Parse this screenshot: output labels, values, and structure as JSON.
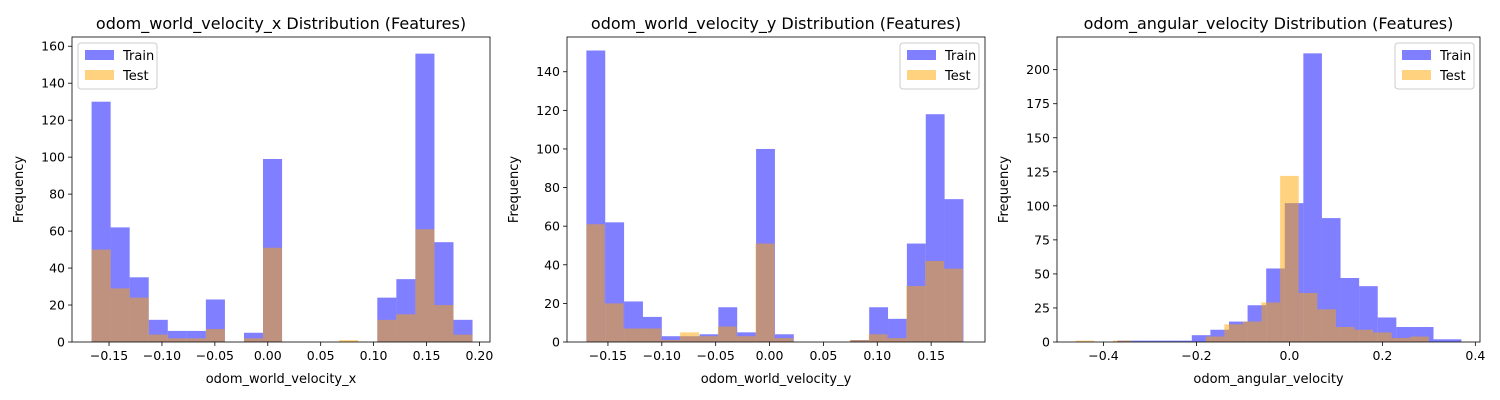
{
  "chart_data": [
    {
      "type": "bar",
      "title": "odom_world_velocity_x Distribution (Features)",
      "xlabel": "odom_world_velocity_x",
      "ylabel": "Frequency",
      "xlim": [
        -0.185,
        0.21
      ],
      "ylim": [
        0,
        165
      ],
      "xticks": [
        -0.15,
        -0.1,
        -0.05,
        0.0,
        0.05,
        0.1,
        0.15,
        0.2
      ],
      "xtick_labels": [
        "−0.15",
        "−0.10",
        "−0.05",
        "0.00",
        "0.05",
        "0.10",
        "0.15",
        "0.20"
      ],
      "yticks": [
        0,
        20,
        40,
        60,
        80,
        100,
        120,
        140,
        160
      ],
      "ytick_labels": [
        "0",
        "20",
        "40",
        "60",
        "80",
        "100",
        "120",
        "140",
        "160"
      ],
      "grid": false,
      "legend": "upper-left",
      "series": [
        {
          "name": "Train",
          "color": "#0000ff",
          "alpha": 0.5,
          "bins": [
            -0.1665,
            -0.1485,
            -0.1305,
            -0.1125,
            -0.0945,
            -0.0765,
            -0.0585,
            -0.0405,
            -0.0225,
            -0.0045,
            0.0135,
            0.0315,
            0.0495,
            0.0675,
            0.0855,
            0.1035,
            0.1215,
            0.1395,
            0.1575,
            0.1755,
            0.1935
          ],
          "counts": [
            130,
            62,
            35,
            12,
            6,
            6,
            23,
            0,
            5,
            99,
            0,
            0,
            0,
            0,
            0,
            24,
            34,
            156,
            54,
            12
          ]
        },
        {
          "name": "Test",
          "color": "#ffa500",
          "alpha": 0.5,
          "bins": [
            -0.1665,
            -0.1485,
            -0.1305,
            -0.1125,
            -0.0945,
            -0.0765,
            -0.0585,
            -0.0405,
            -0.0225,
            -0.0045,
            0.0135,
            0.0315,
            0.0495,
            0.0675,
            0.0855,
            0.1035,
            0.1215,
            0.1395,
            0.1575,
            0.1755,
            0.1935
          ],
          "counts": [
            50,
            29,
            24,
            4,
            2,
            2,
            7,
            0,
            2,
            51,
            0,
            0,
            0,
            1,
            0,
            12,
            15,
            61,
            20,
            4
          ]
        }
      ]
    },
    {
      "type": "bar",
      "title": "odom_world_velocity_y Distribution (Features)",
      "xlabel": "odom_world_velocity_y",
      "ylabel": "Frequency",
      "xlim": [
        -0.188,
        0.2
      ],
      "ylim": [
        0,
        158
      ],
      "xticks": [
        -0.15,
        -0.1,
        -0.05,
        0.0,
        0.05,
        0.1,
        0.15
      ],
      "xtick_labels": [
        "−0.15",
        "−0.10",
        "−0.05",
        "0.00",
        "0.05",
        "0.10",
        "0.15"
      ],
      "yticks": [
        0,
        20,
        40,
        60,
        80,
        100,
        120,
        140
      ],
      "ytick_labels": [
        "0",
        "20",
        "40",
        "60",
        "80",
        "100",
        "120",
        "140"
      ],
      "grid": false,
      "legend": "upper-right",
      "series": [
        {
          "name": "Train",
          "color": "#0000ff",
          "alpha": 0.5,
          "bins": [
            -0.17,
            -0.1525,
            -0.135,
            -0.1175,
            -0.1,
            -0.0825,
            -0.065,
            -0.0475,
            -0.03,
            -0.0125,
            0.005,
            0.0225,
            0.04,
            0.0575,
            0.075,
            0.0925,
            0.11,
            0.1275,
            0.145,
            0.1625,
            0.18
          ],
          "counts": [
            151,
            62,
            21,
            13,
            3,
            3,
            4,
            18,
            5,
            100,
            4,
            0,
            0,
            0,
            1,
            18,
            12,
            51,
            118,
            74
          ]
        },
        {
          "name": "Test",
          "color": "#ffa500",
          "alpha": 0.5,
          "bins": [
            -0.17,
            -0.153,
            -0.1355,
            -0.118,
            -0.1005,
            -0.083,
            -0.0655,
            -0.048,
            -0.0305,
            -0.013,
            0.0045,
            0.022,
            0.0395,
            0.057,
            0.0745,
            0.092,
            0.1095,
            0.127,
            0.1445,
            0.162,
            0.1795
          ],
          "counts": [
            61,
            20,
            7,
            7,
            1,
            5,
            3,
            8,
            3,
            51,
            2,
            0,
            0,
            0,
            1,
            4,
            2,
            29,
            42,
            38
          ]
        }
      ]
    },
    {
      "type": "bar",
      "title": "odom_angular_velocity Distribution (Features)",
      "xlabel": "odom_angular_velocity",
      "ylabel": "Frequency",
      "xlim": [
        -0.5,
        0.41
      ],
      "ylim": [
        0,
        224
      ],
      "xticks": [
        -0.4,
        -0.2,
        0.0,
        0.2,
        0.4
      ],
      "xtick_labels": [
        "−0.4",
        "−0.2",
        "0.0",
        "0.2",
        "0.4"
      ],
      "yticks": [
        0,
        25,
        50,
        75,
        100,
        125,
        150,
        175,
        200
      ],
      "ytick_labels": [
        "0",
        "25",
        "50",
        "75",
        "100",
        "125",
        "150",
        "175",
        "200"
      ],
      "grid": false,
      "legend": "upper-right",
      "series": [
        {
          "name": "Train",
          "color": "#0000ff",
          "alpha": 0.5,
          "bins": [
            -0.37,
            -0.33,
            -0.29,
            -0.25,
            -0.21,
            -0.17,
            -0.13,
            -0.09,
            -0.05,
            -0.01,
            0.03,
            0.07,
            0.11,
            0.15,
            0.19,
            0.23,
            0.27,
            0.31,
            0.37
          ],
          "counts": [
            1,
            1,
            1,
            1,
            5,
            9,
            15,
            27,
            54,
            102,
            212,
            91,
            47,
            41,
            18,
            11,
            11,
            2,
            2
          ]
        },
        {
          "name": "Test",
          "color": "#ffa500",
          "alpha": 0.5,
          "bins": [
            -0.46,
            -0.42,
            -0.38,
            -0.34,
            -0.3,
            -0.26,
            -0.22,
            -0.18,
            -0.14,
            -0.1,
            -0.06,
            -0.02,
            0.02,
            0.06,
            0.1,
            0.14,
            0.18,
            0.22,
            0.26,
            0.3
          ],
          "counts": [
            1,
            0,
            1,
            0,
            0,
            0,
            0,
            4,
            13,
            15,
            29,
            122,
            36,
            24,
            11,
            9,
            7,
            3,
            4,
            1
          ]
        }
      ]
    }
  ]
}
